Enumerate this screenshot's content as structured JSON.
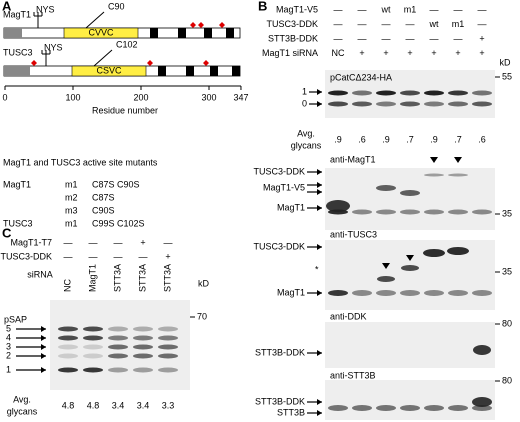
{
  "panel_labels": [
    "A",
    "B",
    "C"
  ],
  "panel_a": {
    "proteins": [
      {
        "name": "MagT1",
        "glycosite": "NYS",
        "cysteine": "C90",
        "motif": "CVVC"
      },
      {
        "name": "TUSC3",
        "glycosite": "NYS",
        "cysteine": "C102",
        "motif": "CSVC"
      }
    ],
    "axis": {
      "ticks": [
        0,
        100,
        200,
        300,
        347
      ],
      "label": "Residue number"
    },
    "mutants": {
      "title": "MagT1 and TUSC3 active site mutants",
      "groups": [
        {
          "protein": "MagT1",
          "rows": [
            [
              "m1",
              "C87S C90S"
            ],
            [
              "m2",
              "C87S"
            ],
            [
              "m3",
              "C90S"
            ]
          ]
        },
        {
          "protein": "TUSC3",
          "rows": [
            [
              "m1",
              "C99S C102S"
            ]
          ]
        }
      ]
    }
  },
  "panel_b": {
    "conditions": [
      {
        "label": "MagT1-V5",
        "lanes": [
          "—",
          "—",
          "wt",
          "m1",
          "—",
          "—",
          "—"
        ]
      },
      {
        "label": "TUSC3-DDK",
        "lanes": [
          "—",
          "—",
          "—",
          "—",
          "wt",
          "m1",
          "—"
        ]
      },
      {
        "label": "STT3B-DDK",
        "lanes": [
          "—",
          "—",
          "—",
          "—",
          "—",
          "—",
          "+"
        ]
      },
      {
        "label": "MagT1 siRNA",
        "lanes": [
          "NC",
          "+",
          "+",
          "+",
          "+",
          "+",
          "+"
        ]
      }
    ],
    "kd": "kD",
    "blot1": {
      "label": "pCatCΔ234-HA",
      "marker": 55,
      "bands": [
        "1",
        "0"
      ],
      "avg_label": [
        "Avg.",
        "glycans"
      ],
      "avg": [
        ".9",
        ".6",
        ".9",
        ".7",
        ".9",
        ".7",
        ".6"
      ]
    },
    "blot2": {
      "label": "anti-MagT1",
      "marker": 35,
      "bands": [
        "TUSC3-DDK",
        "MagT1-V5",
        "MagT1"
      ]
    },
    "blot3": {
      "label": "anti-TUSC3",
      "marker": 35,
      "bands": [
        "TUSC3-DDK",
        "*",
        "MagT1"
      ]
    },
    "blot4": {
      "label": "anti-DDK",
      "marker": 80,
      "bands": [
        "STT3B-DDK"
      ]
    },
    "blot5": {
      "label": "anti-STT3B",
      "marker": 80,
      "bands": [
        "STT3B-DDK",
        "STT3B"
      ]
    }
  },
  "panel_c": {
    "conditions": [
      {
        "label": "MagT1-T7",
        "lanes": [
          "—",
          "—",
          "—",
          "+",
          "—"
        ]
      },
      {
        "label": "TUSC3-DDK",
        "lanes": [
          "—",
          "—",
          "—",
          "—",
          "+"
        ]
      }
    ],
    "sirna_label": "siRNA",
    "sirna": [
      "NC",
      "MagT1",
      "STT3A",
      "STT3A",
      "STT3A"
    ],
    "kd": "kD",
    "blot": {
      "label": "pSAP",
      "marker": 70,
      "bands": [
        "5",
        "4",
        "3",
        "2",
        "1"
      ]
    },
    "avg_label": [
      "Avg.",
      "glycans"
    ],
    "avg": [
      4.8,
      4.8,
      3.4,
      3.4,
      3.3
    ]
  }
}
